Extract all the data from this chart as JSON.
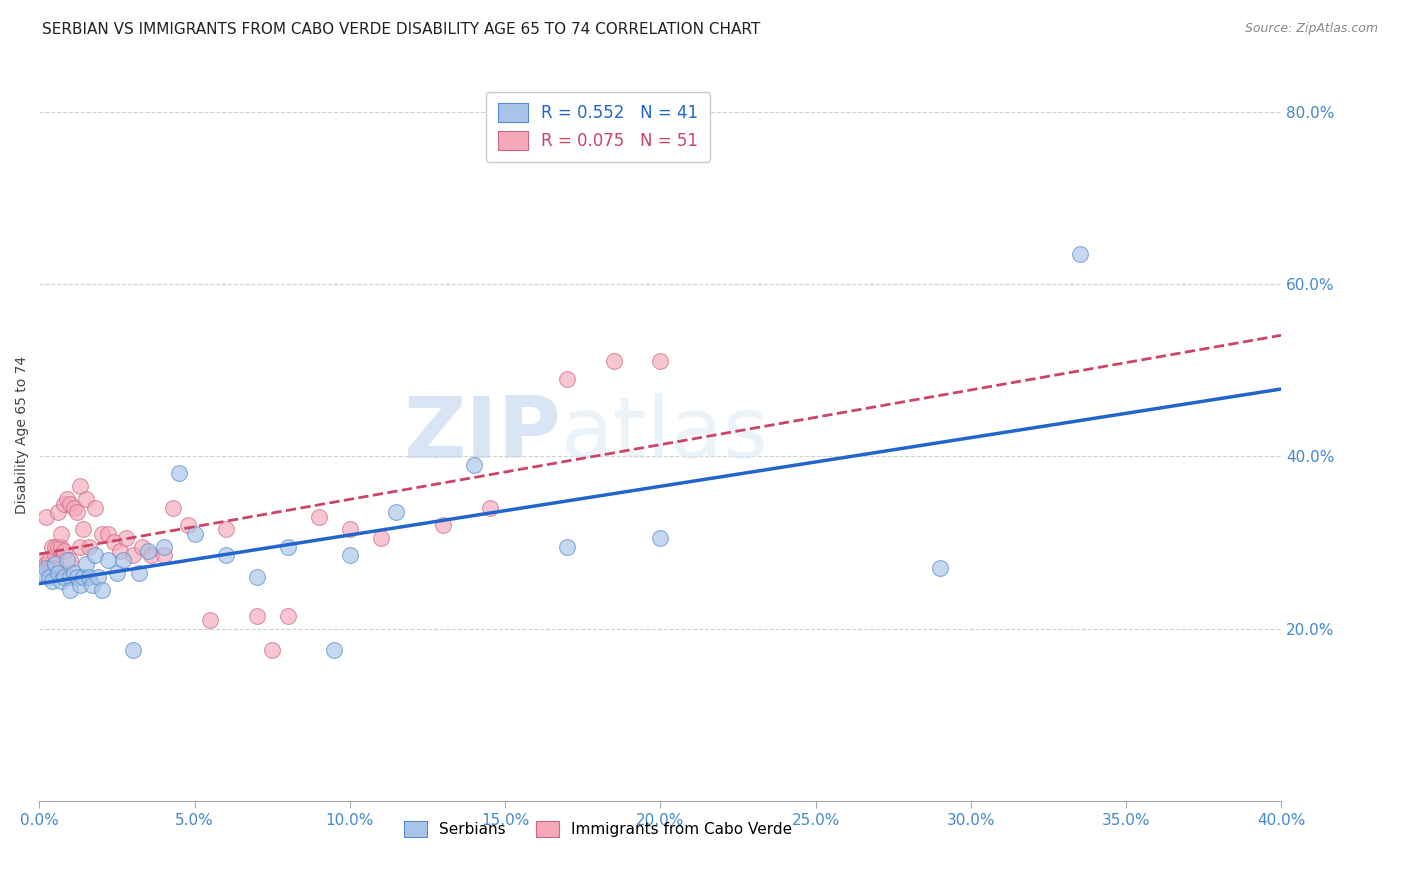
{
  "title": "SERBIAN VS IMMIGRANTS FROM CABO VERDE DISABILITY AGE 65 TO 74 CORRELATION CHART",
  "source": "Source: ZipAtlas.com",
  "ylabel": "Disability Age 65 to 74",
  "xlim": [
    0.0,
    0.4
  ],
  "ylim": [
    0.0,
    0.85
  ],
  "xticks": [
    0.0,
    0.05,
    0.1,
    0.15,
    0.2,
    0.25,
    0.3,
    0.35,
    0.4
  ],
  "yticks": [
    0.2,
    0.4,
    0.6,
    0.8
  ],
  "background_color": "#ffffff",
  "grid_color": "#cccccc",
  "watermark_zip": "ZIP",
  "watermark_atlas": "atlas",
  "legend_R1": "R = 0.552",
  "legend_N1": "N = 41",
  "legend_R2": "R = 0.075",
  "legend_N2": "N = 51",
  "legend_label1": "Serbians",
  "legend_label2": "Immigrants from Cabo Verde",
  "scatter_color1": "#a8c4e8",
  "scatter_color2": "#f4a8b8",
  "scatter_edge1": "#5588cc",
  "scatter_edge2": "#cc6688",
  "line_color1": "#2266cc",
  "line_color2": "#cc4466",
  "tick_color": "#4488cc",
  "title_fontsize": 11,
  "axis_label_fontsize": 10,
  "tick_fontsize": 11,
  "serbian_x": [
    0.001,
    0.002,
    0.003,
    0.004,
    0.005,
    0.006,
    0.007,
    0.008,
    0.009,
    0.01,
    0.01,
    0.011,
    0.012,
    0.013,
    0.014,
    0.015,
    0.016,
    0.017,
    0.018,
    0.019,
    0.02,
    0.022,
    0.025,
    0.027,
    0.03,
    0.032,
    0.035,
    0.04,
    0.045,
    0.05,
    0.06,
    0.07,
    0.08,
    0.095,
    0.1,
    0.115,
    0.14,
    0.17,
    0.2,
    0.29,
    0.335
  ],
  "serbian_y": [
    0.265,
    0.27,
    0.26,
    0.255,
    0.275,
    0.265,
    0.255,
    0.26,
    0.28,
    0.26,
    0.245,
    0.265,
    0.26,
    0.25,
    0.26,
    0.275,
    0.26,
    0.25,
    0.285,
    0.26,
    0.245,
    0.28,
    0.265,
    0.28,
    0.175,
    0.265,
    0.29,
    0.295,
    0.38,
    0.31,
    0.285,
    0.26,
    0.295,
    0.175,
    0.285,
    0.335,
    0.39,
    0.295,
    0.305,
    0.27,
    0.635
  ],
  "cabo_x": [
    0.001,
    0.002,
    0.002,
    0.003,
    0.003,
    0.004,
    0.004,
    0.005,
    0.005,
    0.005,
    0.006,
    0.006,
    0.007,
    0.007,
    0.008,
    0.008,
    0.009,
    0.01,
    0.01,
    0.011,
    0.012,
    0.013,
    0.013,
    0.014,
    0.015,
    0.016,
    0.018,
    0.02,
    0.022,
    0.024,
    0.026,
    0.028,
    0.03,
    0.033,
    0.036,
    0.04,
    0.043,
    0.048,
    0.055,
    0.06,
    0.07,
    0.075,
    0.08,
    0.09,
    0.1,
    0.11,
    0.13,
    0.145,
    0.17,
    0.185,
    0.2
  ],
  "cabo_y": [
    0.28,
    0.275,
    0.33,
    0.27,
    0.28,
    0.27,
    0.295,
    0.27,
    0.285,
    0.295,
    0.295,
    0.335,
    0.295,
    0.31,
    0.29,
    0.345,
    0.35,
    0.28,
    0.345,
    0.34,
    0.335,
    0.295,
    0.365,
    0.315,
    0.35,
    0.295,
    0.34,
    0.31,
    0.31,
    0.3,
    0.29,
    0.305,
    0.285,
    0.295,
    0.285,
    0.285,
    0.34,
    0.32,
    0.21,
    0.315,
    0.215,
    0.175,
    0.215,
    0.33,
    0.315,
    0.305,
    0.32,
    0.34,
    0.49,
    0.51,
    0.51
  ]
}
